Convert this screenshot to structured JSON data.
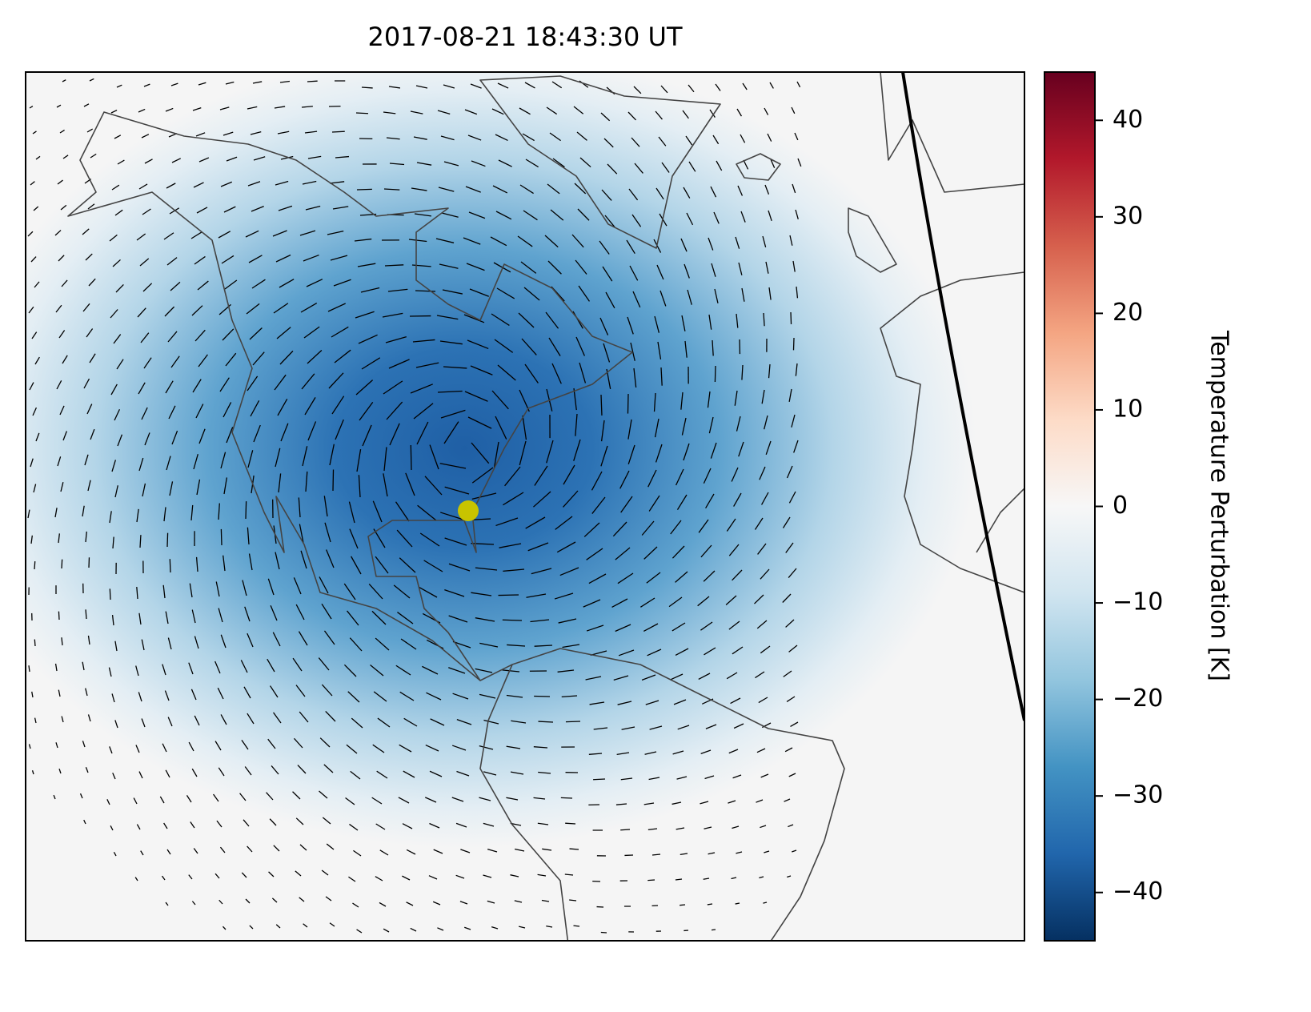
{
  "chart_data": {
    "type": "colorbar-map",
    "title": "2017-08-21 18:43:30 UT",
    "colorbar_label": "Temperature Perturbation [K]",
    "ylim": [
      -45,
      45
    ],
    "yticks": [
      {
        "value": -40,
        "label": "−40"
      },
      {
        "value": -30,
        "label": "−30"
      },
      {
        "value": -20,
        "label": "−20"
      },
      {
        "value": -10,
        "label": "−10"
      },
      0,
      10,
      20,
      30,
      40
    ]
  }
}
